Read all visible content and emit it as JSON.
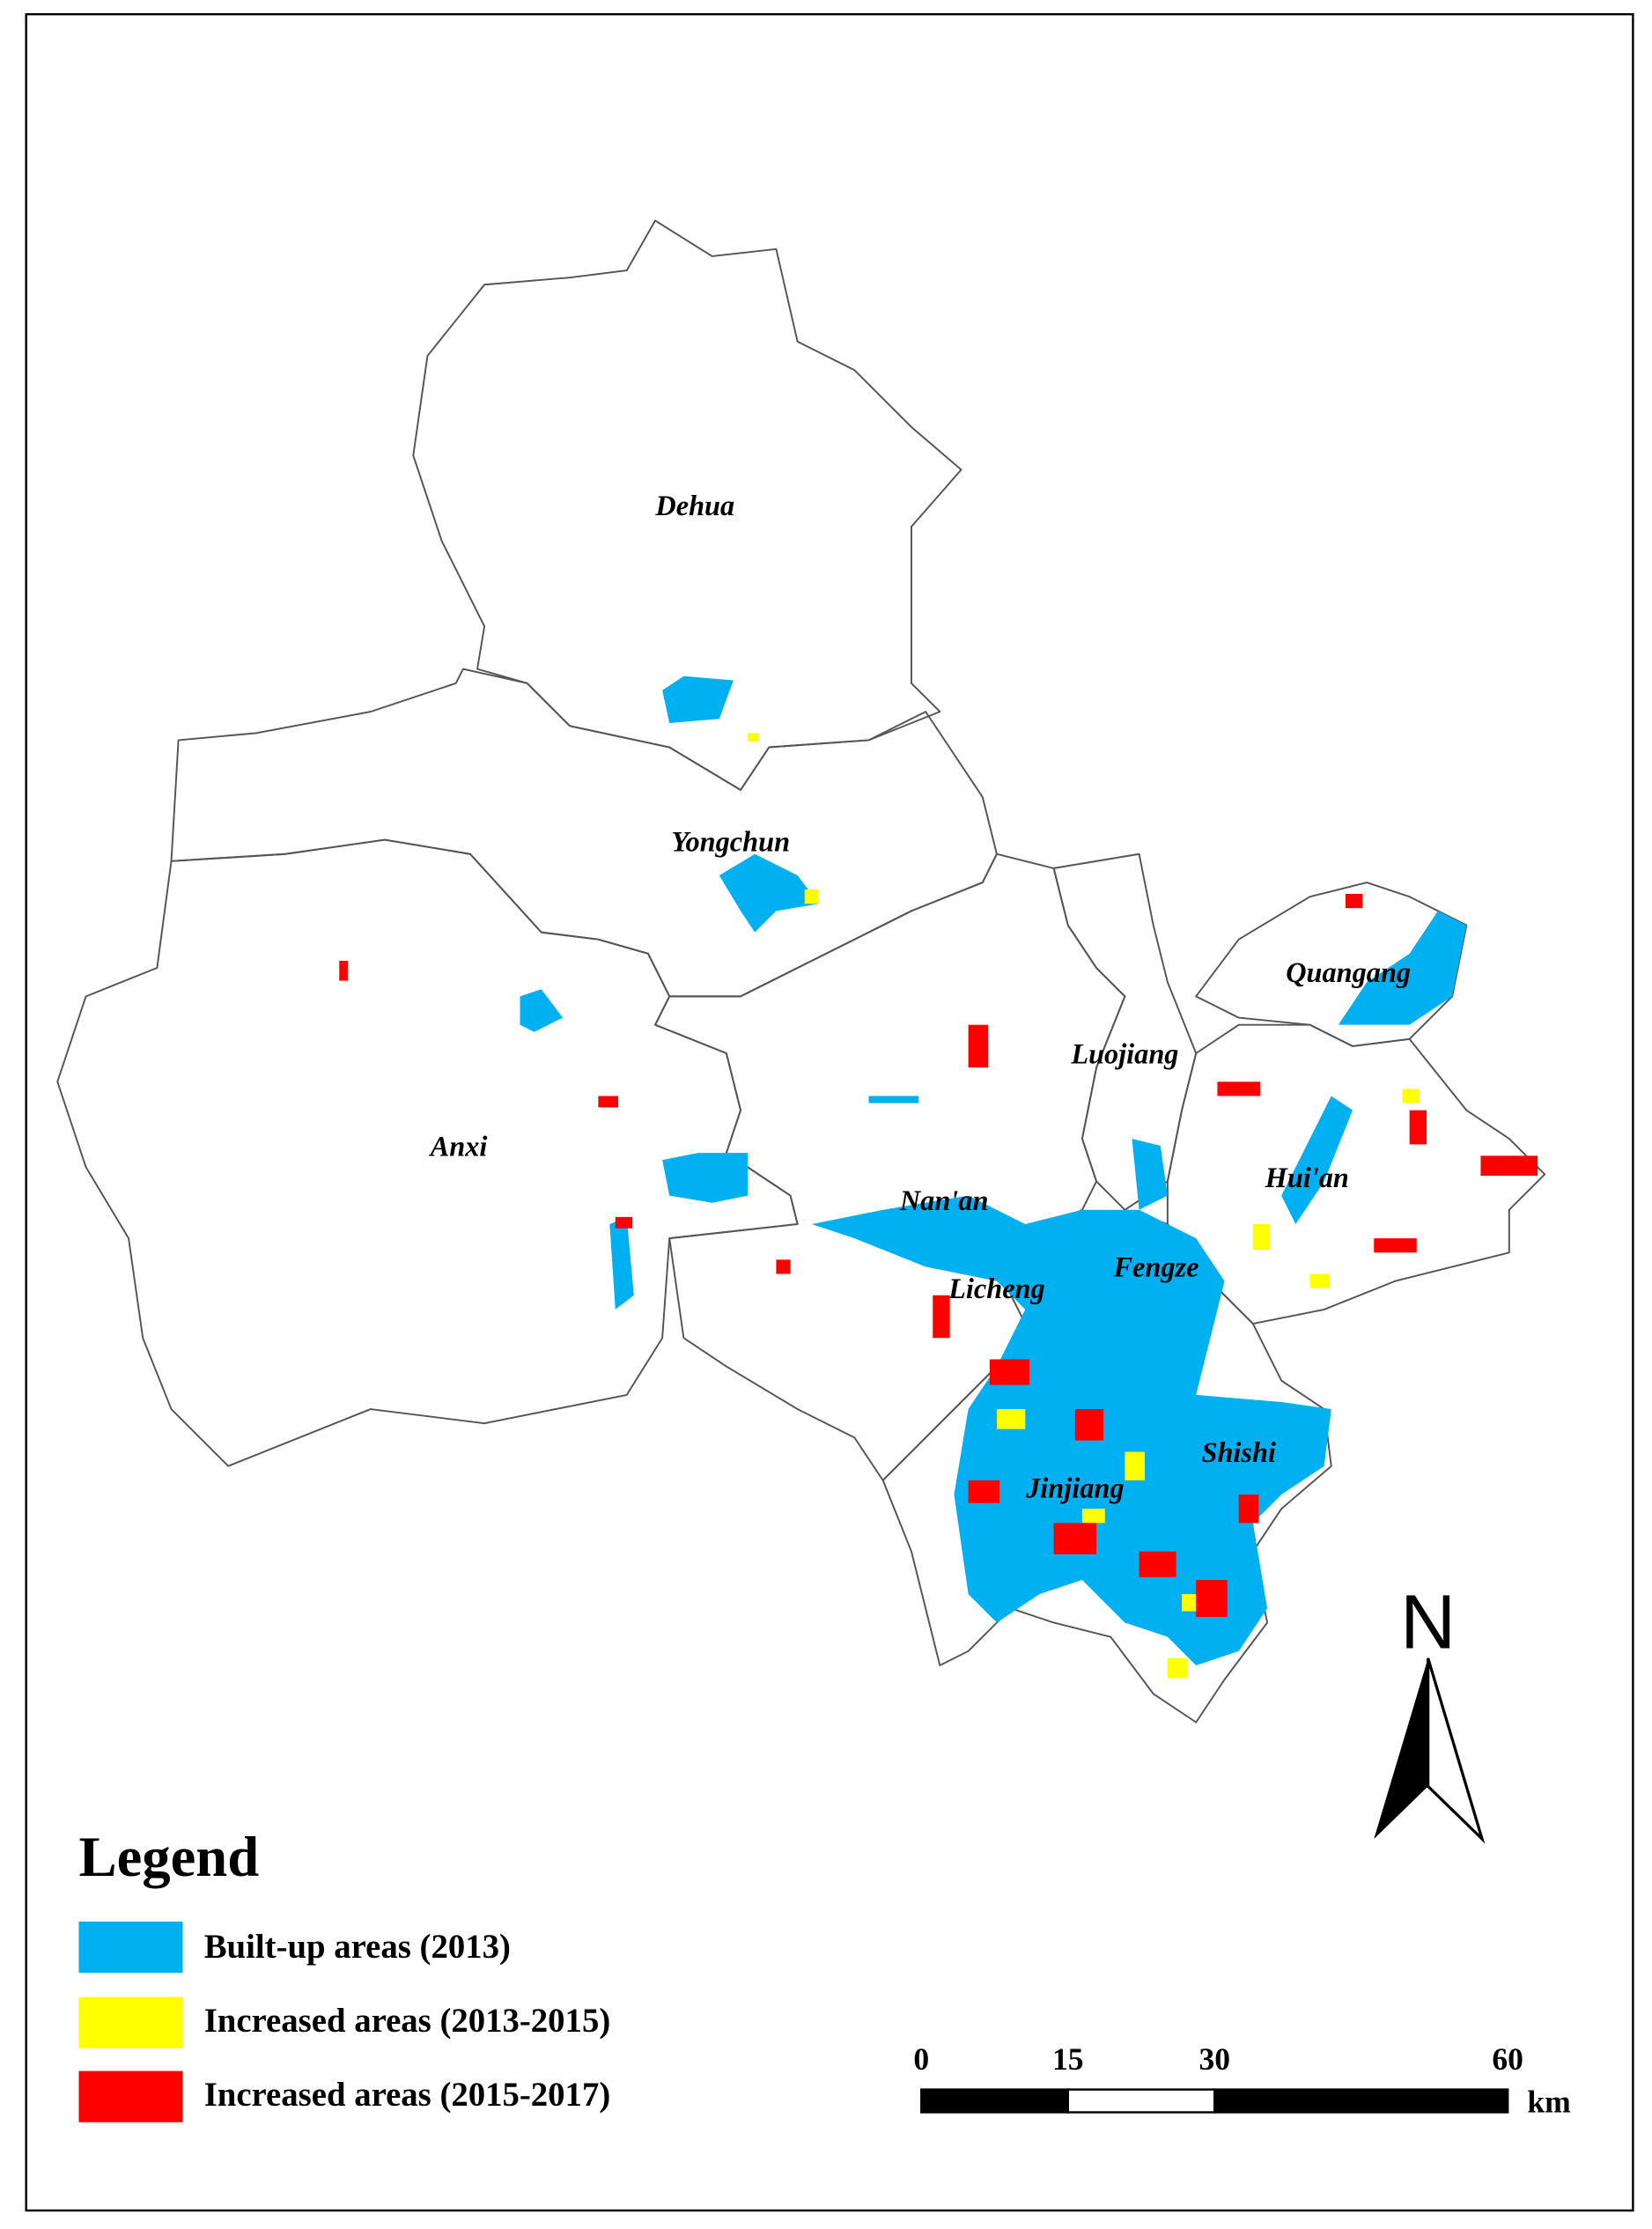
{
  "map": {
    "regions": [
      "Dehua",
      "Yongchun",
      "Anxi",
      "Nan'an",
      "Luojiang",
      "Quangang",
      "Hui'an",
      "Fengze",
      "Licheng",
      "Shishi",
      "Jinjiang"
    ],
    "legend": {
      "title": "Legend",
      "items": [
        "Built-up areas (2013)",
        "Increased areas (2013-2015)",
        "Increased areas (2015-2017)"
      ]
    },
    "north": "N",
    "scale_bar": {
      "ticks": [
        0,
        15,
        30,
        60
      ],
      "unit": "km"
    }
  }
}
